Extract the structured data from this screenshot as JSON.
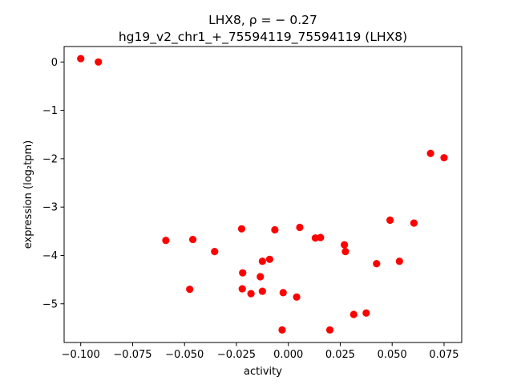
{
  "chart_data": {
    "type": "scatter",
    "title_line1": "LHX8, ρ = − 0.27",
    "title_line2": "hg19_v2_chr1_+_75594119_75594119 (LHX8)",
    "xlabel": "activity",
    "ylabel": "expression (log₂tpm)",
    "xlim": [
      -0.108,
      0.0835
    ],
    "ylim": [
      -5.8,
      0.32
    ],
    "xticks": [
      -0.1,
      -0.075,
      -0.05,
      -0.025,
      0.0,
      0.025,
      0.05,
      0.075
    ],
    "xtick_labels": [
      "−0.100",
      "−0.075",
      "−0.050",
      "−0.025",
      "0.000",
      "0.025",
      "0.050",
      "0.075"
    ],
    "yticks": [
      0,
      -1,
      -2,
      -3,
      -4,
      -5
    ],
    "ytick_labels": [
      "0",
      "−1",
      "−2",
      "−3",
      "−4",
      "−5"
    ],
    "grid": false,
    "marker_color": "#ff0000",
    "points": [
      {
        "x": -0.1,
        "y": 0.07
      },
      {
        "x": -0.0915,
        "y": 0.0
      },
      {
        "x": -0.059,
        "y": -3.69
      },
      {
        "x": -0.046,
        "y": -3.67
      },
      {
        "x": -0.0475,
        "y": -4.7
      },
      {
        "x": -0.0355,
        "y": -3.92
      },
      {
        "x": -0.0225,
        "y": -3.45
      },
      {
        "x": -0.022,
        "y": -4.36
      },
      {
        "x": -0.0222,
        "y": -4.69
      },
      {
        "x": -0.018,
        "y": -4.79
      },
      {
        "x": -0.0135,
        "y": -4.44
      },
      {
        "x": -0.0125,
        "y": -4.12
      },
      {
        "x": -0.0125,
        "y": -4.74
      },
      {
        "x": -0.009,
        "y": -4.08
      },
      {
        "x": -0.0065,
        "y": -3.47
      },
      {
        "x": -0.0025,
        "y": -4.77
      },
      {
        "x": -0.003,
        "y": -5.54
      },
      {
        "x": 0.004,
        "y": -4.86
      },
      {
        "x": 0.0055,
        "y": -3.42
      },
      {
        "x": 0.013,
        "y": -3.64
      },
      {
        "x": 0.0155,
        "y": -3.63
      },
      {
        "x": 0.02,
        "y": -5.54
      },
      {
        "x": 0.027,
        "y": -3.78
      },
      {
        "x": 0.0275,
        "y": -3.92
      },
      {
        "x": 0.0315,
        "y": -5.22
      },
      {
        "x": 0.0375,
        "y": -5.19
      },
      {
        "x": 0.0425,
        "y": -4.17
      },
      {
        "x": 0.049,
        "y": -3.27
      },
      {
        "x": 0.0535,
        "y": -4.12
      },
      {
        "x": 0.0605,
        "y": -3.33
      },
      {
        "x": 0.0685,
        "y": -1.89
      },
      {
        "x": 0.075,
        "y": -1.98
      }
    ]
  }
}
